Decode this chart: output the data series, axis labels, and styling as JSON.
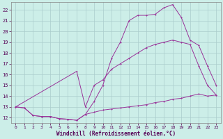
{
  "xlabel": "Windchill (Refroidissement éolien,°C)",
  "bg_color": "#cceee8",
  "grid_color": "#aacccc",
  "line_color": "#993399",
  "ylim": [
    11.5,
    22.7
  ],
  "xlim": [
    -0.5,
    23.5
  ],
  "yticks": [
    12,
    13,
    14,
    15,
    16,
    17,
    18,
    19,
    20,
    21,
    22
  ],
  "xticks": [
    0,
    1,
    2,
    3,
    4,
    5,
    6,
    7,
    8,
    9,
    10,
    11,
    12,
    13,
    14,
    15,
    16,
    17,
    18,
    19,
    20,
    21,
    22,
    23
  ],
  "s1_x": [
    0,
    1,
    2,
    3,
    4,
    5,
    6,
    7,
    8,
    9,
    10,
    11,
    12,
    13,
    14,
    15,
    16,
    17,
    18,
    19,
    20,
    21,
    22,
    23
  ],
  "s1_y": [
    13.0,
    12.9,
    12.2,
    12.1,
    12.1,
    11.9,
    11.85,
    11.75,
    12.3,
    12.5,
    12.7,
    12.8,
    12.9,
    13.0,
    13.1,
    13.2,
    13.4,
    13.5,
    13.7,
    13.8,
    14.0,
    14.2,
    14.0,
    14.1
  ],
  "s2_x": [
    0,
    1,
    2,
    3,
    4,
    5,
    6,
    7,
    8,
    9,
    10,
    11,
    12,
    13,
    14,
    15,
    16,
    17,
    18,
    19,
    20,
    21,
    22,
    23
  ],
  "s2_y": [
    13.0,
    12.9,
    12.2,
    12.1,
    12.1,
    11.9,
    11.85,
    11.75,
    12.3,
    13.5,
    15.0,
    17.5,
    19.0,
    21.0,
    21.5,
    21.5,
    21.6,
    22.2,
    22.5,
    21.3,
    19.2,
    18.7,
    16.8,
    15.0
  ],
  "s3_x": [
    0,
    7,
    8,
    9,
    10,
    11,
    12,
    13,
    14,
    15,
    16,
    17,
    18,
    19,
    20,
    21,
    22,
    23
  ],
  "s3_y": [
    13.0,
    16.3,
    13.0,
    15.0,
    15.5,
    16.5,
    17.0,
    17.5,
    18.0,
    18.5,
    18.8,
    19.0,
    19.2,
    19.0,
    18.8,
    16.8,
    15.0,
    14.1
  ]
}
